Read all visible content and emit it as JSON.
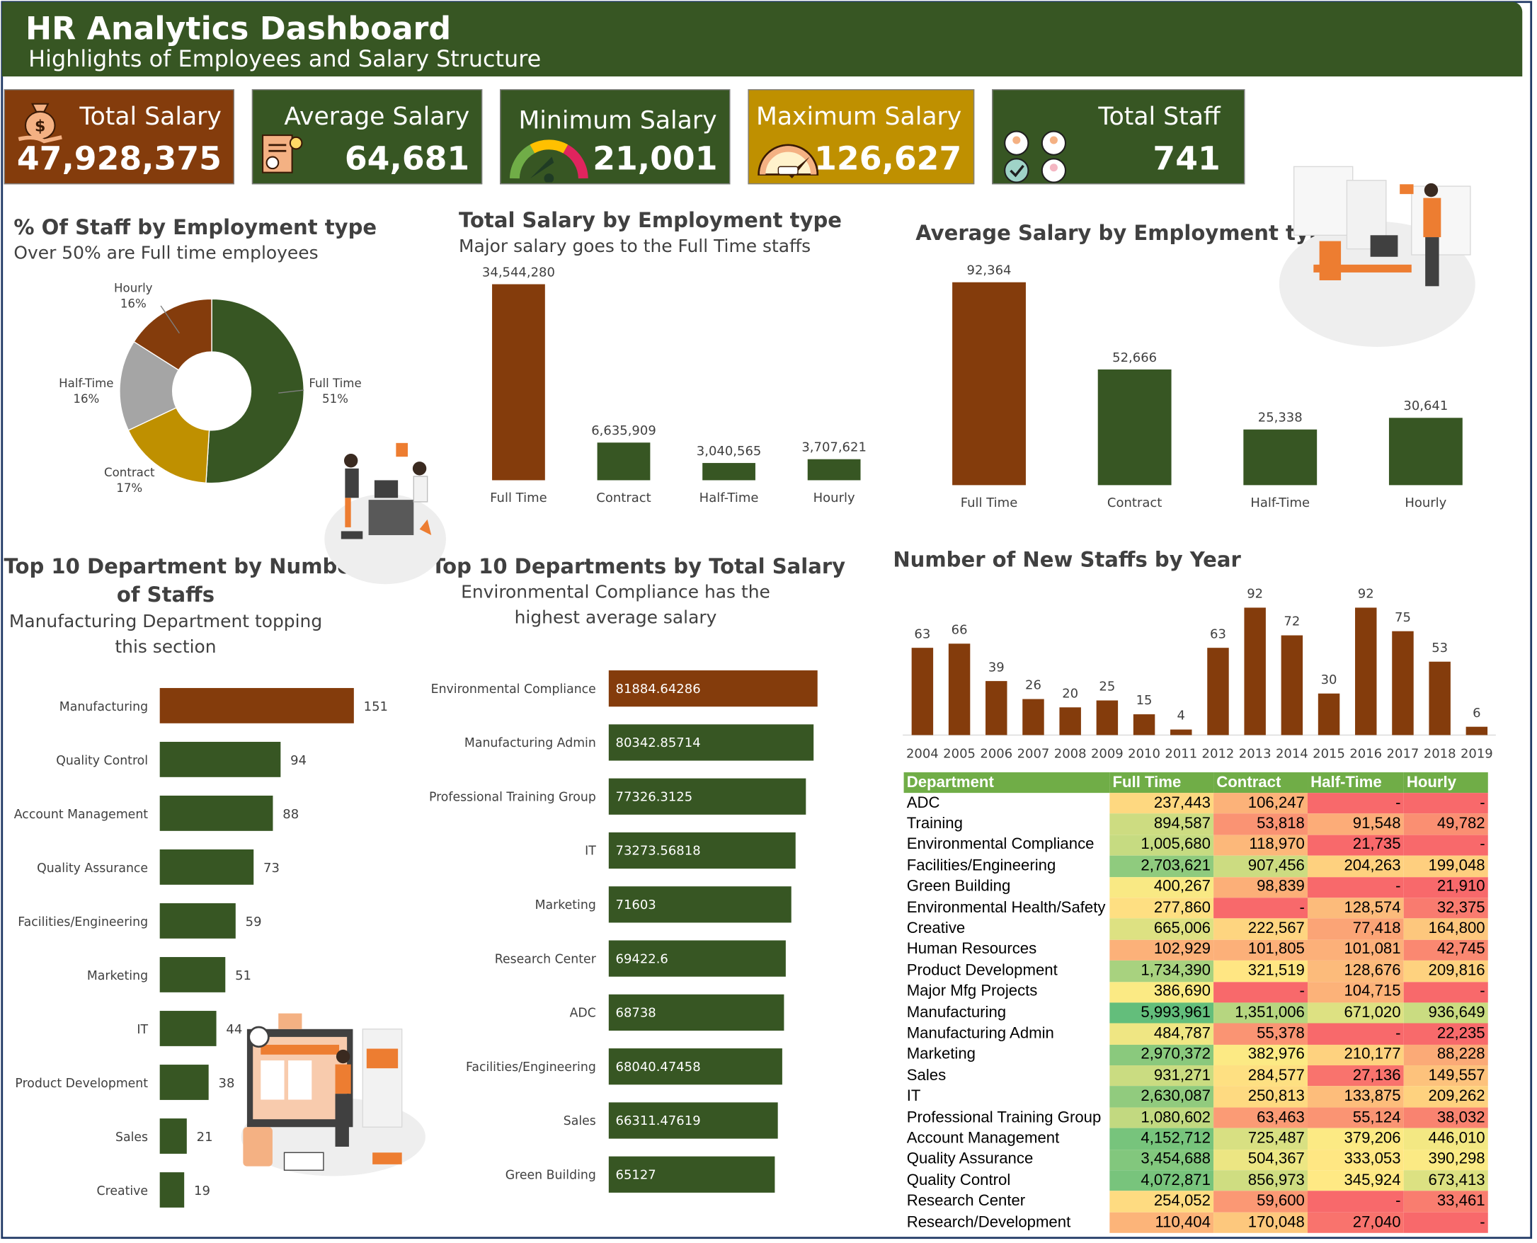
{
  "header": {
    "title": "HR Analytics Dashboard",
    "subtitle": "Highlights of Employees and Salary Structure"
  },
  "kpis": [
    {
      "label": "Total Salary",
      "value": "47,928,375",
      "color": "#843c0c",
      "icon": "money-bag-icon"
    },
    {
      "label": "Average Salary",
      "value": "64,681",
      "color": "#375623",
      "icon": "invoice-icon"
    },
    {
      "label": "Minimum Salary",
      "value": "21,001",
      "color": "#375623",
      "icon": "gauge-low-icon"
    },
    {
      "label": "Maximum Salary",
      "value": "126,627",
      "color": "#bf9000",
      "icon": "gauge-high-icon"
    },
    {
      "label": "Total Staff",
      "value": "741",
      "color": "#375623",
      "icon": "people-icon"
    }
  ],
  "sections": {
    "pct_staff": {
      "title": "% Of Staff by Employment type",
      "subtitle": "Over 50% are Full time employees"
    },
    "total_salary": {
      "title": "Total Salary by Employment type",
      "subtitle": "Major salary goes to the Full Time staffs"
    },
    "avg_salary": {
      "title": "Average Salary by Employment type"
    },
    "top_dept_staff": {
      "title_line1": "Top 10 Department by Number",
      "title_line2": "of Staffs",
      "subtitle_line1": "Manufacturing Department topping",
      "subtitle_line2": "this section"
    },
    "top_dept_salary": {
      "title": "Top 10 Departments by Total Salary",
      "subtitle_line1": "Environmental Compliance has the",
      "subtitle_line2": "highest average salary"
    },
    "new_staff": {
      "title": "Number of New Staffs by Year"
    }
  },
  "colors": {
    "brown": "#843c0c",
    "green": "#375623",
    "gold": "#bf9000",
    "grey": "#a5a5a5"
  },
  "chart_data": [
    {
      "id": "pct_staff",
      "type": "pie",
      "categories": [
        "Full Time",
        "Contract",
        "Half-Time",
        "Hourly"
      ],
      "values": [
        51,
        17,
        16,
        16
      ],
      "labels": [
        "51%",
        "17%",
        "16%",
        "16%"
      ],
      "colors": [
        "#375623",
        "#bf9000",
        "#a5a5a5",
        "#843c0c"
      ]
    },
    {
      "id": "total_salary",
      "type": "bar",
      "categories": [
        "Full Time",
        "Contract",
        "Half-Time",
        "Hourly"
      ],
      "values": [
        34544280,
        6635909,
        3040565,
        3707621
      ],
      "labels": [
        "34,544,280",
        "6,635,909",
        "3,040,565",
        "3,707,621"
      ]
    },
    {
      "id": "avg_salary",
      "type": "bar",
      "categories": [
        "Full Time",
        "Contract",
        "Half-Time",
        "Hourly"
      ],
      "values": [
        92364,
        52666,
        25338,
        30641
      ],
      "labels": [
        "92,364",
        "52,666",
        "25,338",
        "30,641"
      ]
    },
    {
      "id": "top_dept_staff",
      "type": "bar",
      "categories": [
        "Manufacturing",
        "Quality Control",
        "Account Management",
        "Quality Assurance",
        "Facilities/Engineering",
        "Marketing",
        "IT",
        "Product Development",
        "Sales",
        "Creative"
      ],
      "values": [
        151,
        94,
        88,
        73,
        59,
        51,
        44,
        38,
        21,
        19
      ]
    },
    {
      "id": "top_dept_salary",
      "type": "bar",
      "categories": [
        "Environmental Compliance",
        "Manufacturing Admin",
        "Professional Training Group",
        "IT",
        "Marketing",
        "Research Center",
        "ADC",
        "Facilities/Engineering",
        "Sales",
        "Green Building"
      ],
      "values": [
        81884.64286,
        80342.85714,
        77326.3125,
        73273.56818,
        71603,
        69422.6,
        68738,
        68040.47458,
        66311.47619,
        65127
      ],
      "labels": [
        "81884.64286",
        "80342.85714",
        "77326.3125",
        "73273.56818",
        "71603",
        "69422.6",
        "68738",
        "68040.47458",
        "66311.47619",
        "65127"
      ]
    },
    {
      "id": "new_staff",
      "type": "bar",
      "categories": [
        "2004",
        "2005",
        "2006",
        "2007",
        "2008",
        "2009",
        "2010",
        "2011",
        "2012",
        "2013",
        "2014",
        "2015",
        "2016",
        "2017",
        "2018",
        "2019"
      ],
      "values": [
        63,
        66,
        39,
        26,
        20,
        25,
        15,
        4,
        63,
        92,
        72,
        30,
        92,
        75,
        53,
        6
      ]
    },
    {
      "id": "dept_salary_table",
      "type": "heatmap",
      "columns": [
        "Department",
        "Full Time",
        "Contract",
        "Half-Time",
        "Hourly"
      ],
      "rows": [
        [
          "ADC",
          "237,443",
          "106,247",
          "-",
          "-"
        ],
        [
          "Training",
          "894,587",
          "53,818",
          "91,548",
          "49,782"
        ],
        [
          "Environmental Compliance",
          "1,005,680",
          "118,970",
          "21,735",
          "-"
        ],
        [
          "Facilities/Engineering",
          "2,703,621",
          "907,456",
          "204,263",
          "199,048"
        ],
        [
          "Green Building",
          "400,267",
          "98,839",
          "-",
          "21,910"
        ],
        [
          "Environmental Health/Safety",
          "277,860",
          "-",
          "128,574",
          "32,375"
        ],
        [
          "Creative",
          "665,006",
          "222,567",
          "77,418",
          "164,800"
        ],
        [
          "Human Resources",
          "102,929",
          "101,805",
          "101,081",
          "42,745"
        ],
        [
          "Product Development",
          "1,734,390",
          "321,519",
          "128,676",
          "209,816"
        ],
        [
          "Major Mfg Projects",
          "386,690",
          "-",
          "104,715",
          "-"
        ],
        [
          "Manufacturing",
          "5,993,961",
          "1,351,006",
          "671,020",
          "936,649"
        ],
        [
          "Manufacturing Admin",
          "484,787",
          "55,378",
          "-",
          "22,235"
        ],
        [
          "Marketing",
          "2,970,372",
          "382,976",
          "210,177",
          "88,228"
        ],
        [
          "Sales",
          "931,271",
          "284,577",
          "27,136",
          "149,557"
        ],
        [
          "IT",
          "2,630,087",
          "250,813",
          "133,875",
          "209,262"
        ],
        [
          "Professional Training Group",
          "1,080,602",
          "63,463",
          "55,124",
          "38,032"
        ],
        [
          "Account Management",
          "4,152,712",
          "725,487",
          "379,206",
          "446,010"
        ],
        [
          "Quality Assurance",
          "3,454,688",
          "504,367",
          "333,053",
          "390,298"
        ],
        [
          "Quality Control",
          "4,072,871",
          "856,973",
          "345,924",
          "673,413"
        ],
        [
          "Research Center",
          "254,052",
          "59,600",
          "-",
          "33,461"
        ],
        [
          "Research/Development",
          "110,404",
          "170,048",
          "27,040",
          "-"
        ]
      ]
    }
  ]
}
